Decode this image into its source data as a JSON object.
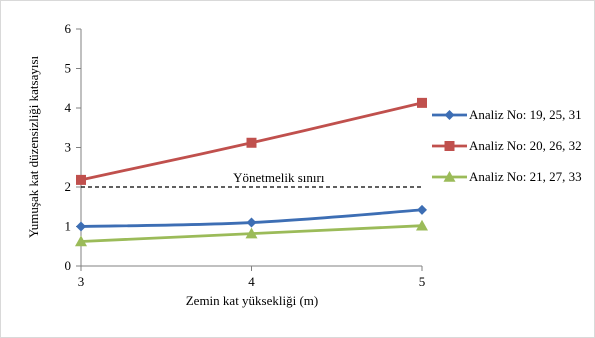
{
  "chart_data": {
    "type": "line",
    "xlabel": "Zemin kat yüksekliği (m)",
    "ylabel": "Yumuşak kat düzensizliği katsayısı",
    "x": [
      3,
      4,
      5
    ],
    "x_ticks": [
      "3",
      "4",
      "5"
    ],
    "xlim": [
      3,
      5
    ],
    "ylim": [
      0,
      6
    ],
    "y_ticks": [
      "0",
      "1",
      "2",
      "3",
      "4",
      "5",
      "6"
    ],
    "grid": false,
    "legend_position": "right",
    "series": [
      {
        "name": "Analiz No: 19, 25, 31",
        "values": [
          1.0,
          1.1,
          1.42
        ],
        "color": "#3d6eb4",
        "marker": "diamond"
      },
      {
        "name": "Analiz No: 20, 26, 32",
        "values": [
          2.18,
          3.12,
          4.13
        ],
        "color": "#c0504d",
        "marker": "square"
      },
      {
        "name": "Analiz No: 21, 27, 33",
        "values": [
          0.62,
          0.82,
          1.02
        ],
        "color": "#9bbb59",
        "marker": "triangle"
      }
    ],
    "reference_line": {
      "label": "Yönetmelik sınırı",
      "value": 2,
      "style": "dashed",
      "color": "#000000"
    }
  }
}
